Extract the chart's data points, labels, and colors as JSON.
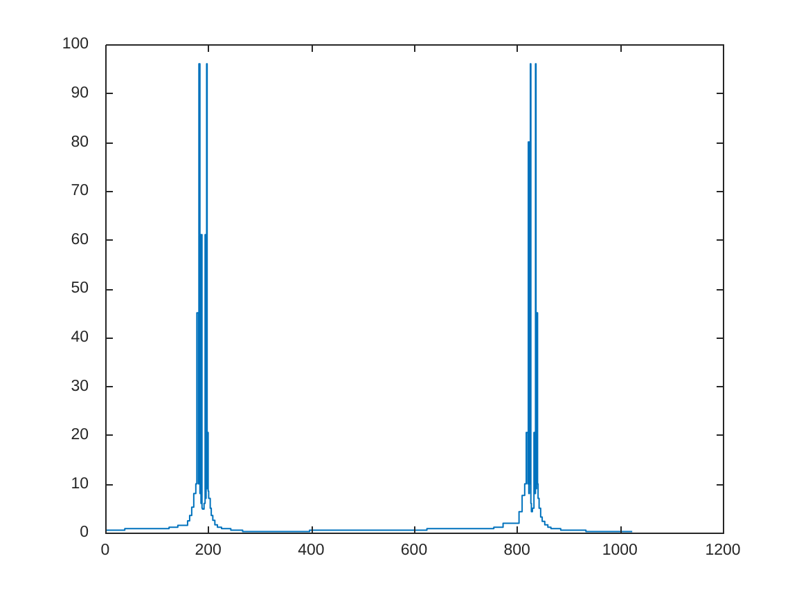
{
  "chart_data": {
    "type": "step",
    "color": "#0072bd",
    "x": [
      0,
      38,
      124,
      141,
      160,
      164,
      168,
      172,
      176,
      178,
      181,
      182,
      184,
      185,
      186,
      187,
      188,
      189,
      192,
      194,
      195,
      196,
      197,
      198,
      199,
      200,
      201,
      204,
      206,
      209,
      213,
      218,
      226,
      244,
      267,
      397,
      625,
      755,
      773,
      804,
      810,
      815,
      818,
      821,
      822,
      823,
      824,
      825,
      826,
      827,
      828,
      830,
      833,
      835,
      836,
      837,
      838,
      840,
      841,
      843,
      846,
      849,
      854,
      860,
      866,
      885,
      934,
      983,
      1024
    ],
    "values": [
      0.2,
      0.5,
      0.8,
      1.1,
      1.5,
      2.4,
      3.5,
      5.2,
      8,
      10,
      45,
      10,
      96,
      8,
      61,
      6,
      61,
      5,
      4.8,
      6,
      61,
      7,
      61,
      96,
      9,
      20.5,
      8.5,
      7,
      5,
      3.5,
      2.5,
      1.6,
      1.1,
      0.8,
      0.5,
      0.2,
      0.5,
      0.8,
      1.1,
      1.9,
      4.3,
      7.6,
      10,
      20.5,
      10,
      80,
      8,
      80,
      10,
      96,
      6,
      4.3,
      5,
      20.5,
      8,
      96,
      9,
      45,
      10,
      7,
      5,
      3.2,
      2.3,
      1.6,
      1.1,
      0.8,
      0.5,
      0.2,
      0.2
    ],
    "xlim": [
      0,
      1200
    ],
    "ylim": [
      0,
      100
    ],
    "xticks": [
      0,
      200,
      400,
      600,
      800,
      1000,
      1200
    ],
    "yticks": [
      0,
      10,
      20,
      30,
      40,
      50,
      60,
      70,
      80,
      90,
      100
    ],
    "grid": false
  }
}
